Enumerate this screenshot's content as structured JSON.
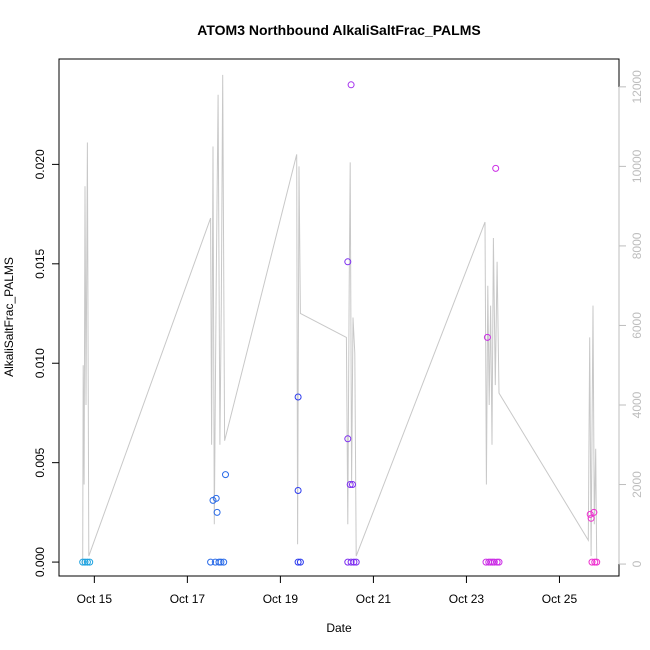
{
  "chart_data": {
    "type": "scatter",
    "title": "ATOM3 Northbound AlkaliSaltFrac_PALMS",
    "xlabel": "Date",
    "ylabel": "AlkaliSaltFrac_PALMS",
    "x_ticks": [
      "Oct 15",
      "Oct 17",
      "Oct 19",
      "Oct 21",
      "Oct 23",
      "Oct 25"
    ],
    "x_tick_days": [
      15,
      17,
      19,
      21,
      23,
      25
    ],
    "xlim": [
      14.24,
      26.28
    ],
    "y_ticks": [
      "0.000",
      "0.005",
      "0.010",
      "0.015",
      "0.020"
    ],
    "y_tick_values": [
      0,
      0.005,
      0.01,
      0.015,
      0.02
    ],
    "ylim": [
      -0.0007,
      0.0253
    ],
    "y2_ticks": [
      "0",
      "2000",
      "4000",
      "6000",
      "8000",
      "10000",
      "12000"
    ],
    "y2_tick_values": [
      0,
      2000,
      4000,
      6000,
      8000,
      10000,
      12000
    ],
    "y2lim": [
      -300,
      12700
    ],
    "grid": false,
    "series": [
      {
        "marker": "open-circle",
        "points": [
          {
            "x": 14.75,
            "y": 0.0,
            "color": "#1fa3e0"
          },
          {
            "x": 14.8,
            "y": 0.0,
            "color": "#1fa3e0"
          },
          {
            "x": 14.85,
            "y": 0.0,
            "color": "#1fa3e0"
          },
          {
            "x": 14.9,
            "y": 0.0,
            "color": "#1fa3e0"
          },
          {
            "x": 17.5,
            "y": 0.0,
            "color": "#2a6be8"
          },
          {
            "x": 17.55,
            "y": 0.0031,
            "color": "#2a6be8"
          },
          {
            "x": 17.6,
            "y": 0.0,
            "color": "#2a6be8"
          },
          {
            "x": 17.62,
            "y": 0.0032,
            "color": "#2a6be8"
          },
          {
            "x": 17.64,
            "y": 0.0025,
            "color": "#2a6be8"
          },
          {
            "x": 17.68,
            "y": 0.0,
            "color": "#2a6be8"
          },
          {
            "x": 17.72,
            "y": 0.0,
            "color": "#2a6be8"
          },
          {
            "x": 17.78,
            "y": 0.0,
            "color": "#2a6be8"
          },
          {
            "x": 17.82,
            "y": 0.0044,
            "color": "#2a6be8"
          },
          {
            "x": 19.38,
            "y": 0.0083,
            "color": "#2d3cee"
          },
          {
            "x": 19.38,
            "y": 0.0036,
            "color": "#2d3cee"
          },
          {
            "x": 19.38,
            "y": 0.0,
            "color": "#2d3cee"
          },
          {
            "x": 19.43,
            "y": 0.0,
            "color": "#2d3cee"
          },
          {
            "x": 20.45,
            "y": 0.0151,
            "color": "#7d2ef0"
          },
          {
            "x": 20.45,
            "y": 0.0062,
            "color": "#7d2ef0"
          },
          {
            "x": 20.45,
            "y": 0.0,
            "color": "#7d2ef0"
          },
          {
            "x": 20.5,
            "y": 0.0039,
            "color": "#7d2ef0"
          },
          {
            "x": 20.52,
            "y": 0.024,
            "color": "#a532ee"
          },
          {
            "x": 20.55,
            "y": 0.0039,
            "color": "#7d2ef0"
          },
          {
            "x": 20.52,
            "y": 0.0,
            "color": "#7d2ef0"
          },
          {
            "x": 20.58,
            "y": 0.0,
            "color": "#7d2ef0"
          },
          {
            "x": 20.63,
            "y": 0.0,
            "color": "#7d2ef0"
          },
          {
            "x": 23.42,
            "y": 0.0,
            "color": "#cc2fe6"
          },
          {
            "x": 23.45,
            "y": 0.0113,
            "color": "#cc2fe6"
          },
          {
            "x": 23.48,
            "y": 0.0,
            "color": "#cc2fe6"
          },
          {
            "x": 23.52,
            "y": 0.0,
            "color": "#cc2fe6"
          },
          {
            "x": 23.56,
            "y": 0.0,
            "color": "#cc2fe6"
          },
          {
            "x": 23.6,
            "y": 0.0,
            "color": "#cc2fe6"
          },
          {
            "x": 23.63,
            "y": 0.0198,
            "color": "#cc2fe6"
          },
          {
            "x": 23.66,
            "y": 0.0,
            "color": "#cc2fe6"
          },
          {
            "x": 23.7,
            "y": 0.0,
            "color": "#cc2fe6"
          },
          {
            "x": 25.66,
            "y": 0.0024,
            "color": "#ee2fcf"
          },
          {
            "x": 25.68,
            "y": 0.0022,
            "color": "#ee2fcf"
          },
          {
            "x": 25.7,
            "y": 0.0,
            "color": "#ee2fcf"
          },
          {
            "x": 25.74,
            "y": 0.0025,
            "color": "#ee2fcf"
          },
          {
            "x": 25.76,
            "y": 0.0,
            "color": "#ee2fcf"
          },
          {
            "x": 25.8,
            "y": 0.0,
            "color": "#ee2fcf"
          }
        ]
      },
      {
        "axis": "right",
        "color": "#c8c8c8",
        "points": [
          {
            "x": 14.75,
            "y": 0
          },
          {
            "x": 14.76,
            "y": 5000
          },
          {
            "x": 14.78,
            "y": 2000
          },
          {
            "x": 14.8,
            "y": 9500
          },
          {
            "x": 14.82,
            "y": 4000
          },
          {
            "x": 14.85,
            "y": 10600
          },
          {
            "x": 14.88,
            "y": 200
          },
          {
            "x": 17.5,
            "y": 8700
          },
          {
            "x": 17.52,
            "y": 3000
          },
          {
            "x": 17.55,
            "y": 10500
          },
          {
            "x": 17.58,
            "y": 1000
          },
          {
            "x": 17.62,
            "y": 7000
          },
          {
            "x": 17.66,
            "y": 11800
          },
          {
            "x": 17.7,
            "y": 3000
          },
          {
            "x": 17.73,
            "y": 6500
          },
          {
            "x": 17.76,
            "y": 12300
          },
          {
            "x": 17.8,
            "y": 3100
          },
          {
            "x": 19.35,
            "y": 10300
          },
          {
            "x": 19.37,
            "y": 500
          },
          {
            "x": 19.4,
            "y": 10000
          },
          {
            "x": 19.43,
            "y": 6300
          },
          {
            "x": 20.42,
            "y": 5700
          },
          {
            "x": 20.45,
            "y": 1000
          },
          {
            "x": 20.48,
            "y": 7000
          },
          {
            "x": 20.5,
            "y": 10100
          },
          {
            "x": 20.53,
            "y": 2000
          },
          {
            "x": 20.56,
            "y": 6200
          },
          {
            "x": 20.6,
            "y": 5300
          },
          {
            "x": 20.63,
            "y": 200
          },
          {
            "x": 23.4,
            "y": 8600
          },
          {
            "x": 23.43,
            "y": 2000
          },
          {
            "x": 23.46,
            "y": 7000
          },
          {
            "x": 23.49,
            "y": 4000
          },
          {
            "x": 23.52,
            "y": 6500
          },
          {
            "x": 23.55,
            "y": 3000
          },
          {
            "x": 23.58,
            "y": 8200
          },
          {
            "x": 23.62,
            "y": 4500
          },
          {
            "x": 23.66,
            "y": 7600
          },
          {
            "x": 23.7,
            "y": 4300
          },
          {
            "x": 25.62,
            "y": 600
          },
          {
            "x": 25.65,
            "y": 5700
          },
          {
            "x": 25.68,
            "y": 200
          },
          {
            "x": 25.72,
            "y": 6500
          },
          {
            "x": 25.75,
            "y": 1000
          },
          {
            "x": 25.78,
            "y": 2900
          },
          {
            "x": 25.8,
            "y": 100
          }
        ]
      }
    ]
  }
}
